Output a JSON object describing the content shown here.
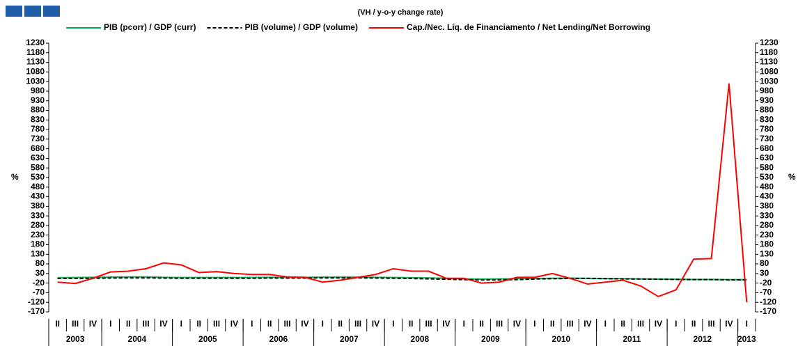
{
  "chart_data": {
    "type": "line",
    "subtitle": "(VH / y-o-y change rate)",
    "categories": [
      "II",
      "III",
      "IV",
      "I",
      "II",
      "III",
      "IV",
      "I",
      "II",
      "III",
      "IV",
      "I",
      "II",
      "III",
      "IV",
      "I",
      "II",
      "III",
      "IV",
      "I",
      "II",
      "III",
      "IV",
      "I",
      "II",
      "III",
      "IV",
      "I",
      "II",
      "III",
      "IV",
      "I",
      "II",
      "III",
      "IV",
      "I",
      "II",
      "III",
      "IV",
      "I"
    ],
    "years": [
      "2003",
      "2004",
      "2005",
      "2006",
      "2007",
      "2008",
      "2009",
      "2010",
      "2011",
      "2012",
      "2013"
    ],
    "series": [
      {
        "name": "PIB (pcorr) / GDP (curr)",
        "color": "#00b050",
        "dash": false,
        "values": [
          8,
          9,
          10,
          11,
          12,
          12,
          10,
          9,
          9,
          9,
          9,
          9,
          10,
          10,
          10,
          11,
          11,
          11,
          10,
          9,
          8,
          7,
          5,
          2,
          1,
          2,
          3,
          4,
          5,
          6,
          5,
          4,
          3,
          2,
          1,
          0,
          -1,
          -1,
          -2,
          -2
        ]
      },
      {
        "name": "PIB (volume) / GDP (volume)",
        "color": "#000000",
        "dash": true,
        "values": [
          4,
          4,
          5,
          6,
          7,
          7,
          6,
          5,
          5,
          5,
          5,
          5,
          6,
          6,
          6,
          7,
          7,
          7,
          6,
          5,
          4,
          2,
          0,
          -2,
          -3,
          -3,
          -2,
          1,
          3,
          4,
          4,
          3,
          2,
          1,
          0,
          -1,
          -2,
          -2,
          -3,
          -3
        ]
      },
      {
        "name": "Cap./Nec. Líq. de Financiamento / Net Lending/Net Borrowing",
        "color": "#ff0000",
        "dash": false,
        "values": [
          -15,
          -22,
          5,
          38,
          42,
          55,
          85,
          75,
          35,
          40,
          30,
          25,
          25,
          12,
          10,
          -15,
          -5,
          10,
          25,
          55,
          42,
          42,
          5,
          5,
          -20,
          -15,
          10,
          10,
          30,
          5,
          -25,
          -15,
          -5,
          -35,
          -90,
          -55,
          105,
          108,
          1020,
          -120
        ]
      }
    ],
    "ylim": [
      -170,
      1230
    ],
    "yticks": [
      -170,
      -120,
      -70,
      -20,
      30,
      80,
      130,
      180,
      230,
      280,
      330,
      380,
      430,
      480,
      530,
      580,
      630,
      680,
      730,
      780,
      830,
      880,
      930,
      980,
      1030,
      1080,
      1130,
      1180,
      1230
    ],
    "ylabel": "%",
    "y2label": "%"
  }
}
